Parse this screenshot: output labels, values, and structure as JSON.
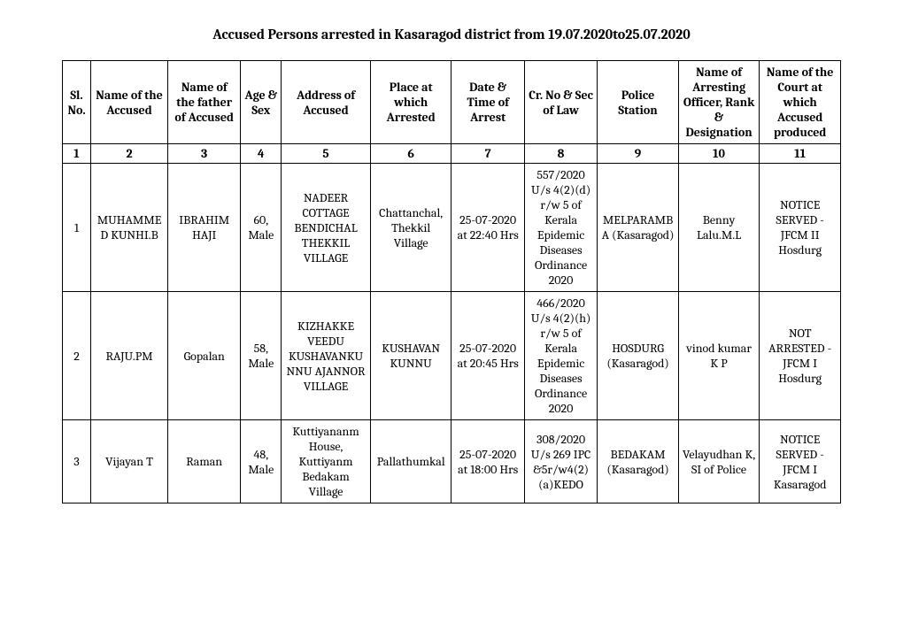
{
  "title": "Accused Persons arrested in  Kasaragod   district from  19.07.2020to25.07.2020",
  "columns": [
    "Sl. No.",
    "Name of the Accused",
    "Name of the father of Accused",
    "Age & Sex",
    "Address of Accused",
    "Place at which Arrested",
    "Date & Time of Arrest",
    "Cr. No & Sec of Law",
    "Police Station",
    "Name of Arresting Officer, Rank & Designation",
    "Name of the Court at which Accused produced"
  ],
  "colnums": [
    "1",
    "2",
    "3",
    "4",
    "5",
    "6",
    "7",
    "8",
    "9",
    "10",
    "11"
  ],
  "rows": [
    {
      "sl": "1",
      "name": "MUHAMMED KUNHI.B",
      "father": "IBRAHIM HAJI",
      "age": "60, Male",
      "addr": "NADEER COTTAGE BENDICHAL THEKKIL VILLAGE",
      "place": "Chattanchal, Thekkil Village",
      "date": "25-07-2020 at 22:40 Hrs",
      "cr": "557/2020 U/s 4(2)(d) r/w 5 of Kerala Epidemic Diseases Ordinance 2020",
      "ps": "MELPARAMBA (Kasaragod)",
      "officer": "Benny Lalu.M.L",
      "court": "NOTICE SERVED - JFCM II Hosdurg"
    },
    {
      "sl": "2",
      "name": "RAJU.PM",
      "father": "Gopalan",
      "age": "58, Male",
      "addr": "KIZHAKKE VEEDU KUSHAVANKUNNU AJANNOR VILLAGE",
      "place": "KUSHAVAN KUNNU",
      "date": "25-07-2020 at 20:45 Hrs",
      "cr": "466/2020 U/s 4(2)(h) r/w 5 of Kerala Epidemic Diseases Ordinance 2020",
      "ps": "HOSDURG (Kasaragod)",
      "officer": "vinod kumar K P",
      "court": "NOT ARRESTED - JFCM I Hosdurg"
    },
    {
      "sl": "3",
      "name": "Vijayan T",
      "father": "Raman",
      "age": "48, Male",
      "addr": "Kuttiyananm House, Kuttiyanm Bedakam Village",
      "place": "Pallathumkal",
      "date": "25-07-2020 at 18:00 Hrs",
      "cr": "308/2020 U/s 269 IPC &5r/w4(2)(a)KEDO",
      "ps": "BEDAKAM (Kasaragod)",
      "officer": "Velayudhan K, SI of Police",
      "court": "NOTICE SERVED - JFCM I Kasaragod"
    }
  ]
}
